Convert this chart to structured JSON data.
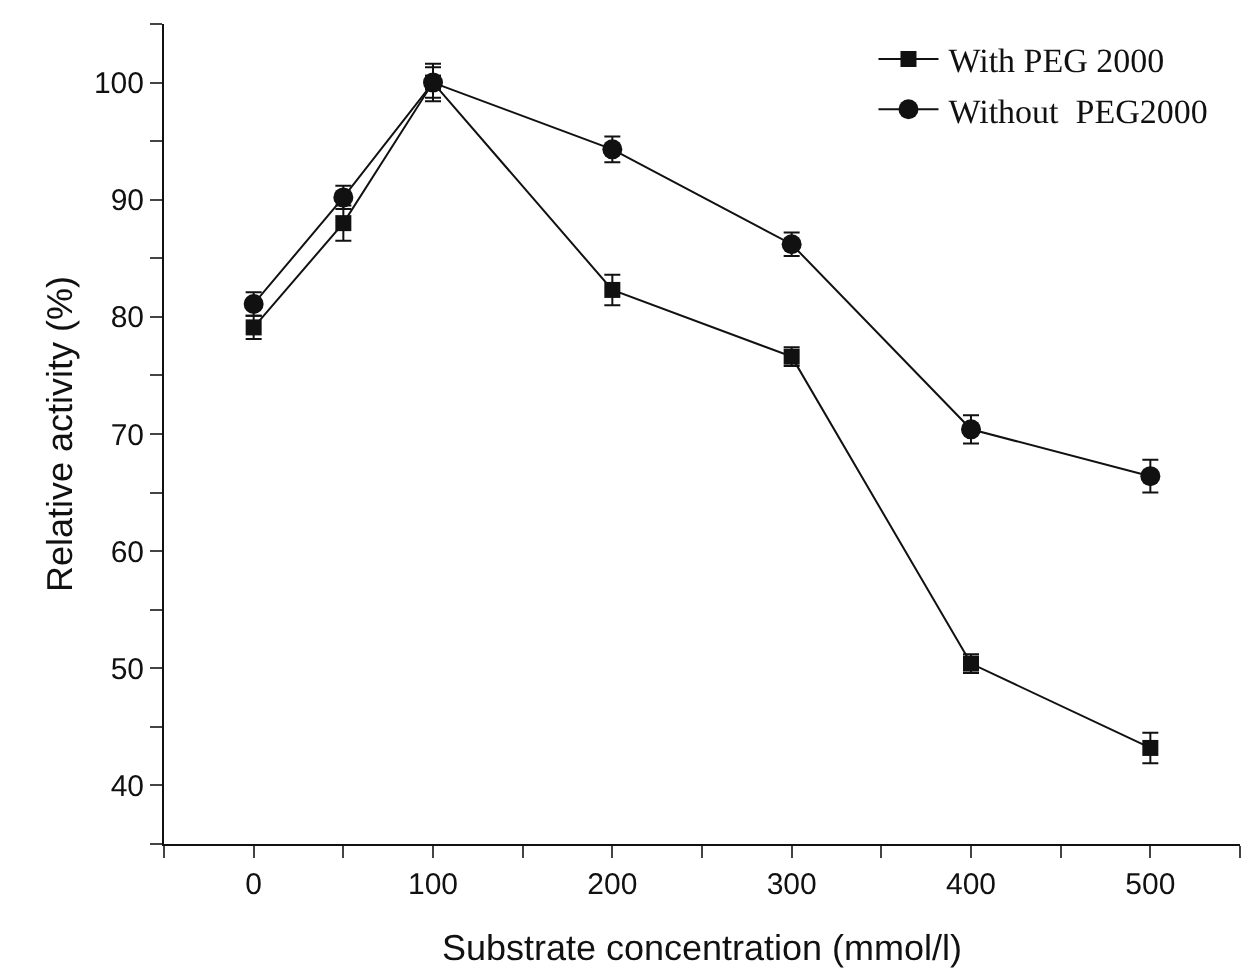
{
  "chart_data": {
    "type": "line",
    "xlabel": "Substrate concentration (mmol/l)",
    "ylabel": "Relative activity (%)",
    "x": [
      0,
      50,
      100,
      200,
      300,
      400,
      500
    ],
    "series": [
      {
        "name": "With PEG 2000",
        "color": "#111111",
        "marker": "square",
        "values": [
          79.1,
          88.0,
          100,
          82.3,
          76.6,
          50.4,
          43.2
        ],
        "errors": [
          1.0,
          1.5,
          1.6,
          1.3,
          0.8,
          0.8,
          1.3
        ]
      },
      {
        "name": "Without  PEG2000",
        "color": "#111111",
        "marker": "circle",
        "values": [
          81.1,
          90.2,
          100,
          94.3,
          86.2,
          70.4,
          66.4
        ],
        "errors": [
          1.0,
          1.0,
          1.3,
          1.1,
          1.0,
          1.2,
          1.4
        ]
      }
    ],
    "xlim": [
      -50,
      550
    ],
    "xticks": [
      {
        "value": -50,
        "label": null
      },
      0,
      {
        "value": 50,
        "label": null
      },
      100,
      {
        "value": 150,
        "label": null
      },
      200,
      {
        "value": 250,
        "label": null
      },
      300,
      {
        "value": 350,
        "label": null
      },
      400,
      {
        "value": 450,
        "label": null
      },
      500,
      {
        "value": 550,
        "label": null
      }
    ],
    "ylim": [
      35,
      105
    ],
    "yticks": [
      {
        "value": 35,
        "label": null
      },
      40,
      {
        "value": 45,
        "label": null
      },
      50,
      {
        "value": 55,
        "label": null
      },
      60,
      {
        "value": 65,
        "label": null
      },
      70,
      {
        "value": 75,
        "label": null
      },
      80,
      {
        "value": 85,
        "label": null
      },
      90,
      {
        "value": 95,
        "label": null
      },
      100,
      {
        "value": 105,
        "label": null
      }
    ],
    "grid": false,
    "legend": "top right",
    "line_style": "solid"
  }
}
